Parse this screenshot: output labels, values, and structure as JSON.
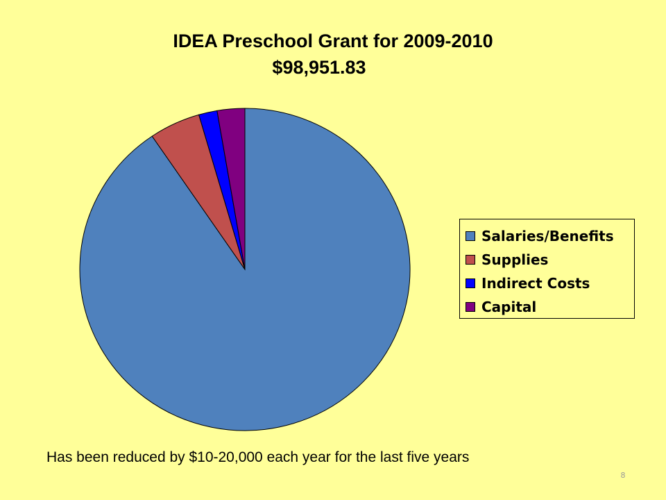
{
  "chart_data": {
    "type": "pie",
    "title": "IDEA Preschool Grant for 2009-2010",
    "subtitle": "$98,951.83",
    "categories": [
      "Salaries/Benefits",
      "Supplies",
      "Indirect Costs",
      "Capital"
    ],
    "values": [
      90.5,
      5.0,
      1.8,
      2.7
    ],
    "colors": [
      "#4F81BD",
      "#C0504D",
      "#0000FF",
      "#800080"
    ],
    "legend_position": "right"
  },
  "caption": "Has been reduced by $10-20,000 each year for the last five years",
  "page_number": "8"
}
